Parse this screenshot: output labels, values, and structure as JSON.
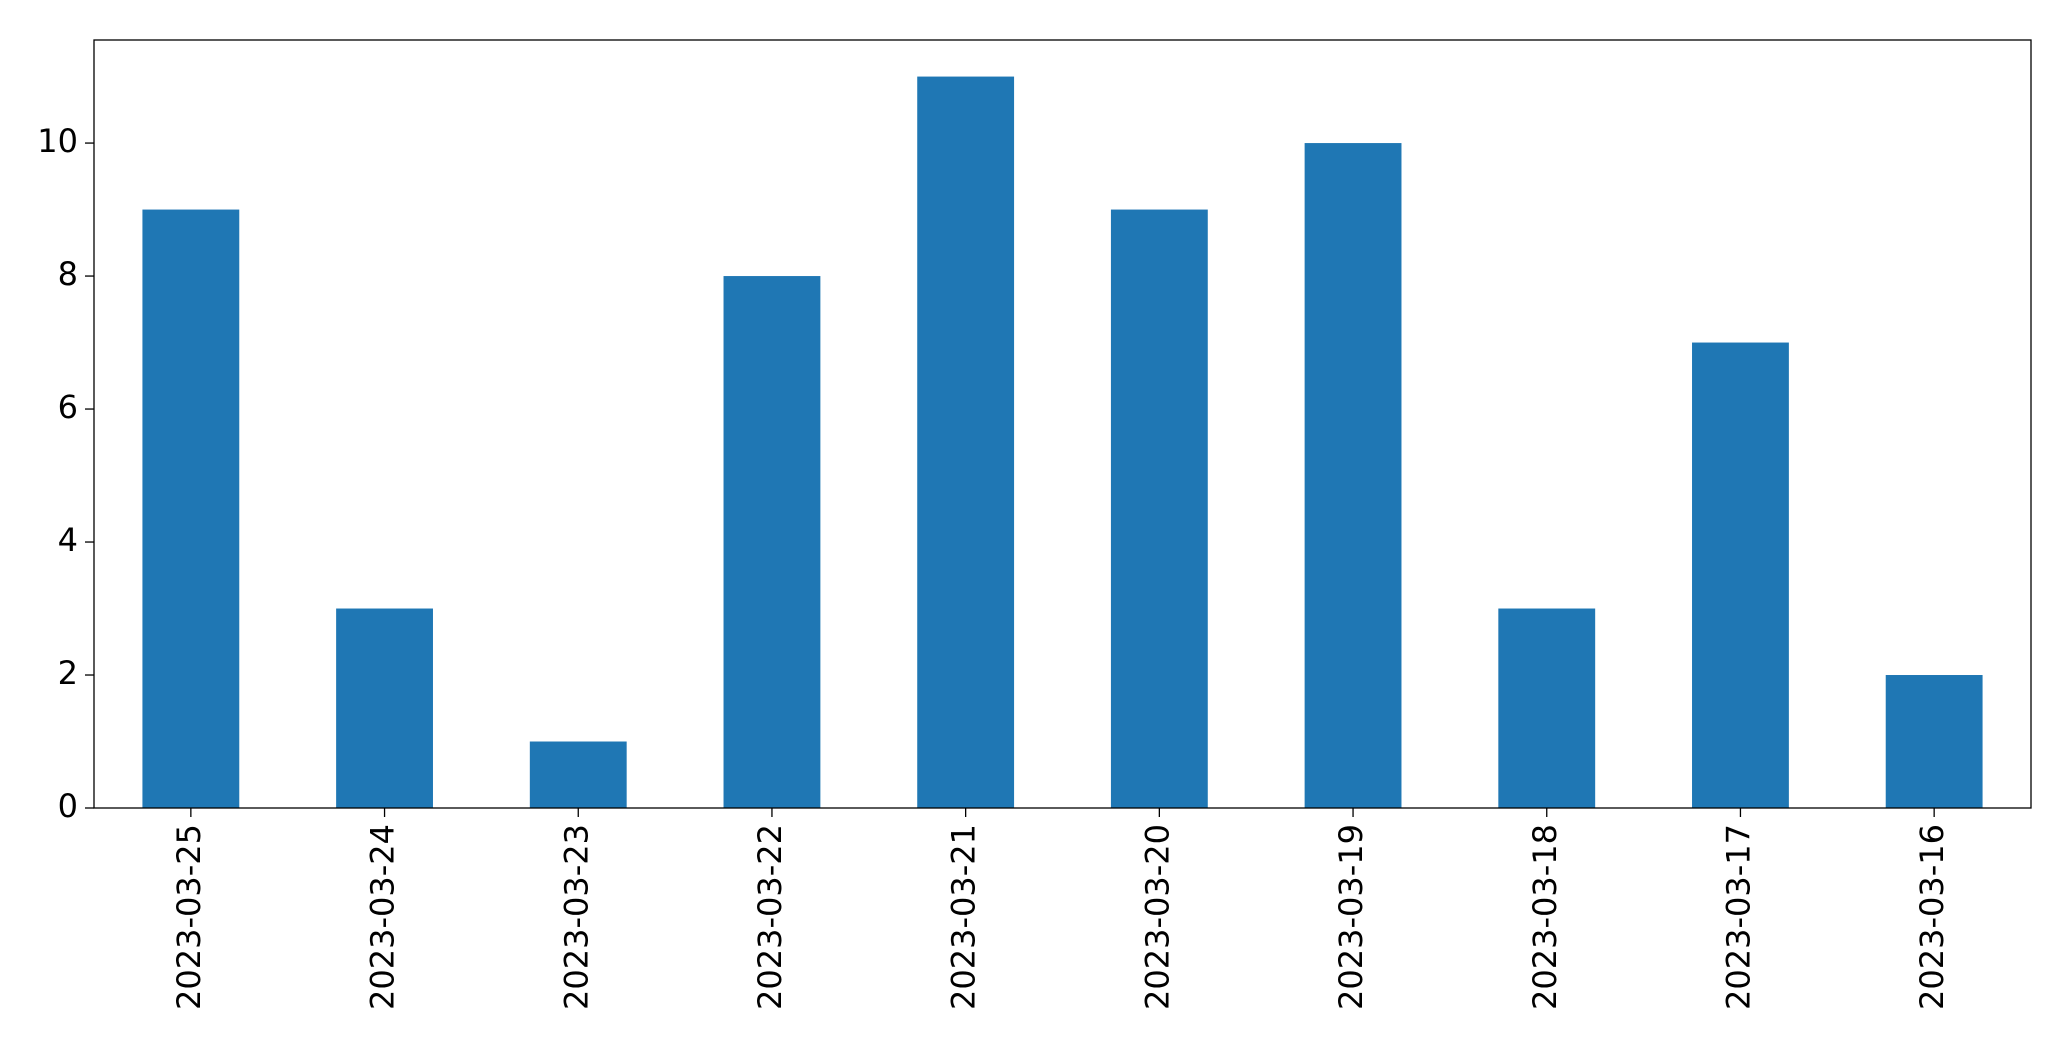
{
  "chart_data": {
    "type": "bar",
    "categories": [
      "2023-03-25",
      "2023-03-24",
      "2023-03-23",
      "2023-03-22",
      "2023-03-21",
      "2023-03-20",
      "2023-03-19",
      "2023-03-18",
      "2023-03-17",
      "2023-03-16"
    ],
    "values": [
      9,
      3,
      1,
      8,
      11,
      9,
      10,
      3,
      7,
      2
    ],
    "color": "#1f77b4",
    "ylim": [
      0,
      11.55
    ],
    "yticks": [
      0,
      2,
      4,
      6,
      8,
      10
    ],
    "grid": false
  }
}
